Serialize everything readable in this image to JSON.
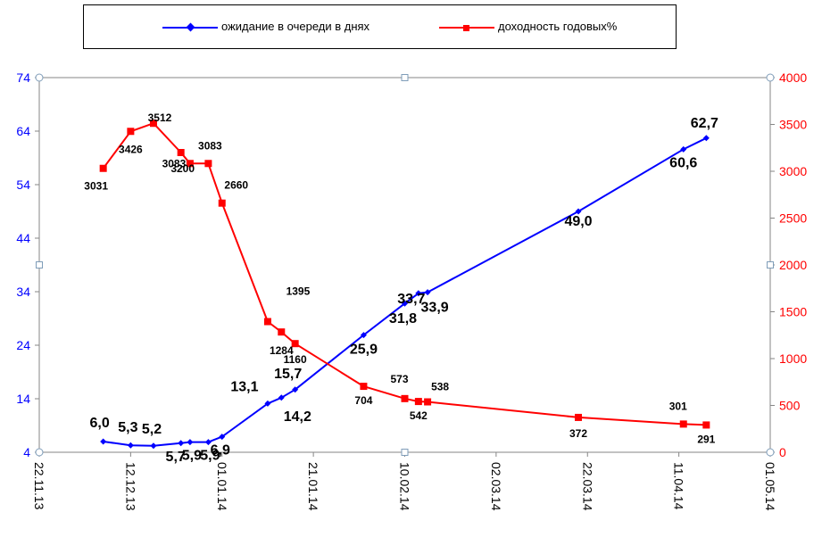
{
  "chart_data": {
    "type": "line",
    "title": "",
    "legend_position": "top",
    "grid": false,
    "colors": {
      "series1": "#0000ff",
      "series2": "#ff0000",
      "axis": "#868686"
    },
    "x_axis": {
      "type": "date",
      "min": "2013-11-22",
      "max": "2014-05-01",
      "tick_labels": [
        "22.11.13",
        "12.12.13",
        "01.01.14",
        "21.01.14",
        "10.02.14",
        "02.03.14",
        "22.03.14",
        "11.04.14",
        "01.05.14"
      ]
    },
    "y_axis_left": {
      "min": 4,
      "max": 74,
      "ticks": [
        "4",
        "14",
        "24",
        "34",
        "44",
        "54",
        "64",
        "74"
      ],
      "color": "#0000ff"
    },
    "y_axis_right": {
      "min": 0,
      "max": 4000,
      "ticks": [
        "0",
        "500",
        "1000",
        "1500",
        "2000",
        "2500",
        "3000",
        "3500",
        "4000"
      ],
      "color": "#ff0000"
    },
    "series": [
      {
        "name": "ожидание в очереди в днях",
        "axis": "left",
        "color": "#0000ff",
        "marker": "diamond",
        "points": [
          {
            "x": "2013-12-06",
            "y": 6.0,
            "label": "6,0"
          },
          {
            "x": "2013-12-12",
            "y": 5.3,
            "label": "5,3"
          },
          {
            "x": "2013-12-17",
            "y": 5.2,
            "label": "5,2"
          },
          {
            "x": "2013-12-23",
            "y": 5.7,
            "label": "5,7"
          },
          {
            "x": "2013-12-25",
            "y": 5.9,
            "label": "5,9"
          },
          {
            "x": "2013-12-29",
            "y": 5.9,
            "label": "5,9"
          },
          {
            "x": "2014-01-01",
            "y": 6.9,
            "label": "6,9"
          },
          {
            "x": "2014-01-11",
            "y": 13.1,
            "label": "13,1"
          },
          {
            "x": "2014-01-14",
            "y": 14.2,
            "label": "14,2"
          },
          {
            "x": "2014-01-17",
            "y": 15.7,
            "label": "15,7"
          },
          {
            "x": "2014-02-01",
            "y": 25.9,
            "label": "25,9"
          },
          {
            "x": "2014-02-10",
            "y": 31.8,
            "label": "31,8"
          },
          {
            "x": "2014-02-13",
            "y": 33.7,
            "label": "33,7"
          },
          {
            "x": "2014-02-15",
            "y": 33.9,
            "label": "33,9"
          },
          {
            "x": "2014-03-20",
            "y": 49.0,
            "label": "49,0"
          },
          {
            "x": "2014-04-12",
            "y": 60.6,
            "label": "60,6"
          },
          {
            "x": "2014-04-17",
            "y": 62.7,
            "label": "62,7"
          }
        ]
      },
      {
        "name": "доходность годовых%",
        "axis": "right",
        "color": "#ff0000",
        "marker": "square",
        "points": [
          {
            "x": "2013-12-06",
            "y": 3031,
            "label": "3031"
          },
          {
            "x": "2013-12-12",
            "y": 3426,
            "label": "3426"
          },
          {
            "x": "2013-12-17",
            "y": 3512,
            "label": "3512"
          },
          {
            "x": "2013-12-23",
            "y": 3200,
            "label": "3200"
          },
          {
            "x": "2013-12-25",
            "y": 3083,
            "label": "3083"
          },
          {
            "x": "2013-12-29",
            "y": 3083,
            "label": "3083"
          },
          {
            "x": "2014-01-01",
            "y": 2660,
            "label": "2660"
          },
          {
            "x": "2014-01-11",
            "y": 1395,
            "label": "1395"
          },
          {
            "x": "2014-01-14",
            "y": 1284,
            "label": "1284"
          },
          {
            "x": "2014-01-17",
            "y": 1160,
            "label": "1160"
          },
          {
            "x": "2014-02-01",
            "y": 704,
            "label": "704"
          },
          {
            "x": "2014-02-10",
            "y": 573,
            "label": "573"
          },
          {
            "x": "2014-02-13",
            "y": 542,
            "label": "542"
          },
          {
            "x": "2014-02-15",
            "y": 538,
            "label": "538"
          },
          {
            "x": "2014-03-20",
            "y": 372,
            "label": "372"
          },
          {
            "x": "2014-04-12",
            "y": 301,
            "label": "301"
          },
          {
            "x": "2014-04-17",
            "y": 291,
            "label": "291"
          }
        ]
      }
    ]
  }
}
